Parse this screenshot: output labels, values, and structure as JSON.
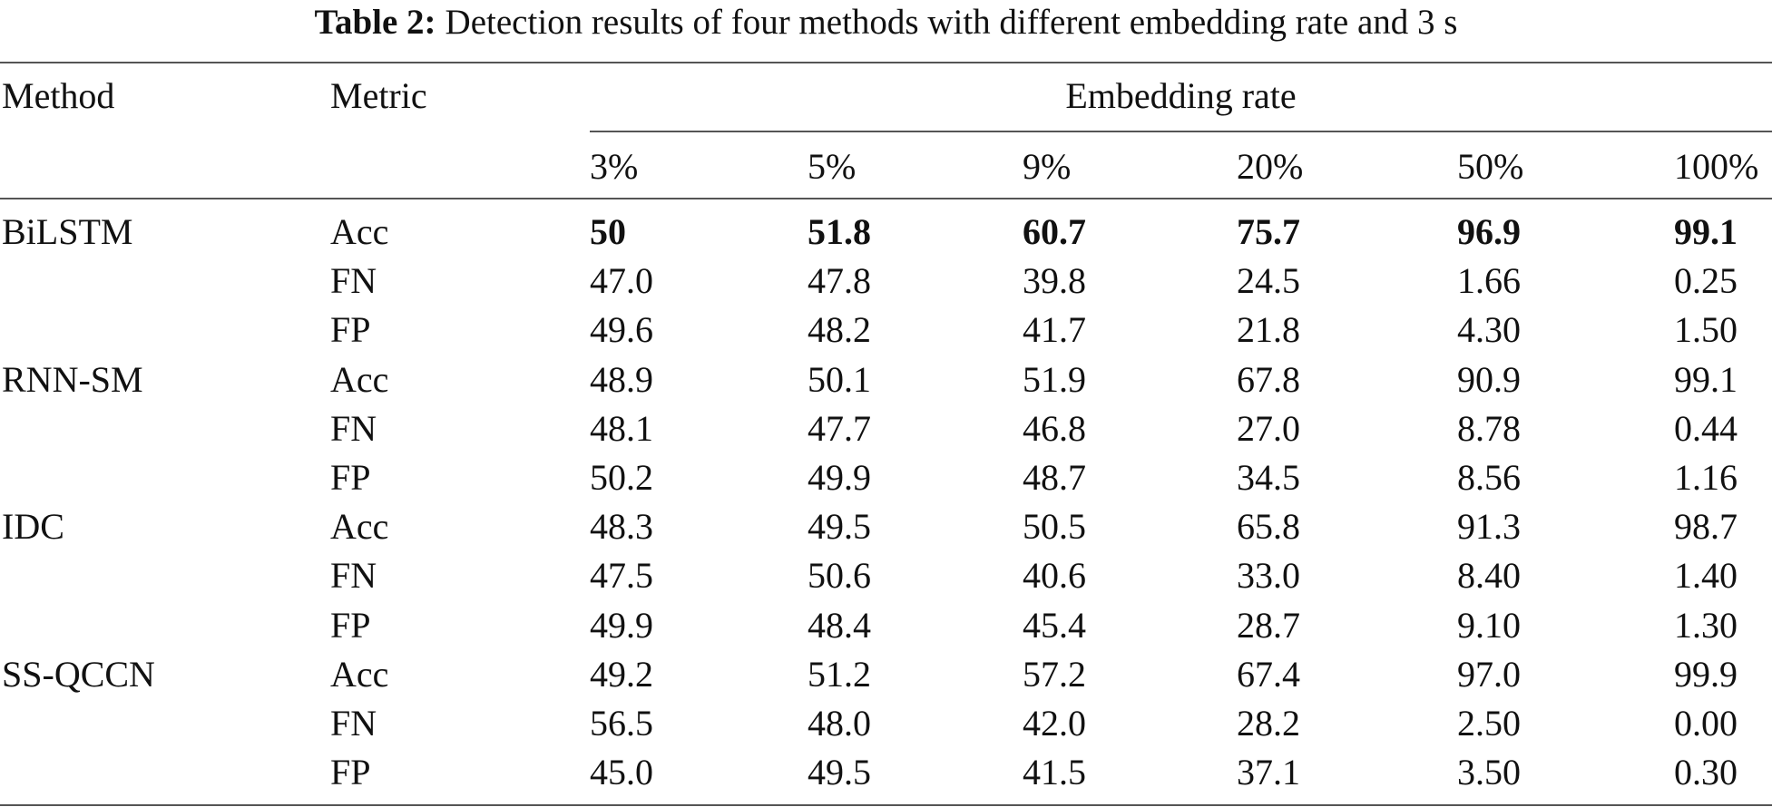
{
  "caption": {
    "label": "Table 2:",
    "text": "Detection results of four methods with different embedding rate and 3 s"
  },
  "table": {
    "header": {
      "method": "Method",
      "metric": "Metric",
      "group": "Embedding rate",
      "rates": [
        "3%",
        "5%",
        "9%",
        "20%",
        "50%",
        "100%"
      ]
    },
    "groups": [
      {
        "method": "BiLSTM",
        "rows": [
          {
            "metric": "Acc",
            "bold": true,
            "values": [
              "50",
              "51.8",
              "60.7",
              "75.7",
              "96.9",
              "99.1"
            ]
          },
          {
            "metric": "FN",
            "values": [
              "47.0",
              "47.8",
              "39.8",
              "24.5",
              "1.66",
              "0.25"
            ]
          },
          {
            "metric": "FP",
            "values": [
              "49.6",
              "48.2",
              "41.7",
              "21.8",
              "4.30",
              "1.50"
            ]
          }
        ]
      },
      {
        "method": "RNN-SM",
        "rows": [
          {
            "metric": "Acc",
            "values": [
              "48.9",
              "50.1",
              "51.9",
              "67.8",
              "90.9",
              "99.1"
            ]
          },
          {
            "metric": "FN",
            "values": [
              "48.1",
              "47.7",
              "46.8",
              "27.0",
              "8.78",
              "0.44"
            ]
          },
          {
            "metric": "FP",
            "values": [
              "50.2",
              "49.9",
              "48.7",
              "34.5",
              "8.56",
              "1.16"
            ]
          }
        ]
      },
      {
        "method": "IDC",
        "rows": [
          {
            "metric": "Acc",
            "values": [
              "48.3",
              "49.5",
              "50.5",
              "65.8",
              "91.3",
              "98.7"
            ]
          },
          {
            "metric": "FN",
            "values": [
              "47.5",
              "50.6",
              "40.6",
              "33.0",
              "8.40",
              "1.40"
            ]
          },
          {
            "metric": "FP",
            "values": [
              "49.9",
              "48.4",
              "45.4",
              "28.7",
              "9.10",
              "1.30"
            ]
          }
        ]
      },
      {
        "method": "SS-QCCN",
        "rows": [
          {
            "metric": "Acc",
            "values": [
              "49.2",
              "51.2",
              "57.2",
              "67.4",
              "97.0",
              "99.9"
            ]
          },
          {
            "metric": "FN",
            "values": [
              "56.5",
              "48.0",
              "42.0",
              "28.2",
              "2.50",
              "0.00"
            ]
          },
          {
            "metric": "FP",
            "values": [
              "45.0",
              "49.5",
              "41.5",
              "37.1",
              "3.50",
              "0.30"
            ]
          }
        ]
      }
    ]
  }
}
